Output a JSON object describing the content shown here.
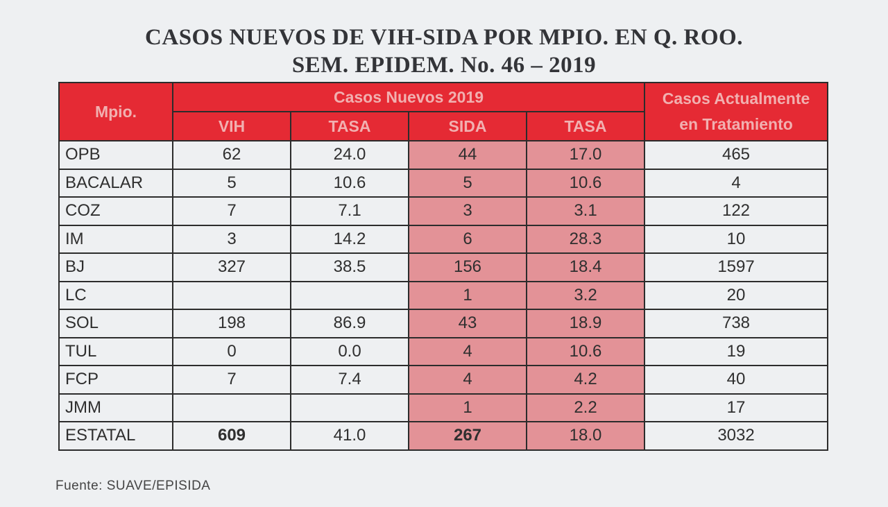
{
  "title": {
    "line1": "CASOS NUEVOS DE VIH-SIDA POR MPIO. EN Q. ROO.",
    "line2": "SEM. EPIDEM. No. 46 – 2019"
  },
  "headers": {
    "mpio": "Mpio.",
    "casos_nuevos": "Casos Nuevos 2019",
    "vih": "VIH",
    "tasa_vih": "TASA",
    "sida": "SIDA",
    "tasa_sida": "TASA",
    "tratamiento_line1": "Casos Actualmente",
    "tratamiento_line2": "en Tratamiento"
  },
  "rows": [
    {
      "mpio": "OPB",
      "vih": "62",
      "tasa_vih": "24.0",
      "sida": "44",
      "tasa_sida": "17.0",
      "tratamiento": "465"
    },
    {
      "mpio": "BACALAR",
      "vih": "5",
      "tasa_vih": "10.6",
      "sida": "5",
      "tasa_sida": "10.6",
      "tratamiento": "4"
    },
    {
      "mpio": "COZ",
      "vih": "7",
      "tasa_vih": "7.1",
      "sida": "3",
      "tasa_sida": "3.1",
      "tratamiento": "122"
    },
    {
      "mpio": "IM",
      "vih": "3",
      "tasa_vih": "14.2",
      "sida": "6",
      "tasa_sida": "28.3",
      "tratamiento": "10"
    },
    {
      "mpio": "BJ",
      "vih": "327",
      "tasa_vih": "38.5",
      "sida": "156",
      "tasa_sida": "18.4",
      "tratamiento": "1597"
    },
    {
      "mpio": "LC",
      "vih": "",
      "tasa_vih": "",
      "sida": "1",
      "tasa_sida": "3.2",
      "tratamiento": "20"
    },
    {
      "mpio": "SOL",
      "vih": "198",
      "tasa_vih": "86.9",
      "sida": "43",
      "tasa_sida": "18.9",
      "tratamiento": "738"
    },
    {
      "mpio": "TUL",
      "vih": "0",
      "tasa_vih": "0.0",
      "sida": "4",
      "tasa_sida": "10.6",
      "tratamiento": "19"
    },
    {
      "mpio": "FCP",
      "vih": "7",
      "tasa_vih": "7.4",
      "sida": "4",
      "tasa_sida": "4.2",
      "tratamiento": "40"
    },
    {
      "mpio": "JMM",
      "vih": "",
      "tasa_vih": "",
      "sida": "1",
      "tasa_sida": "2.2",
      "tratamiento": "17"
    },
    {
      "mpio": "ESTATAL",
      "vih": "609",
      "tasa_vih": "41.0",
      "sida": "267",
      "tasa_sida": "18.0",
      "tratamiento": "3032"
    }
  ],
  "source": "Fuente: SUAVE/EPISIDA",
  "colors": {
    "header_bg": "#e52a34",
    "header_text": "#f1b0b0",
    "sida_bg": "#e39297"
  }
}
